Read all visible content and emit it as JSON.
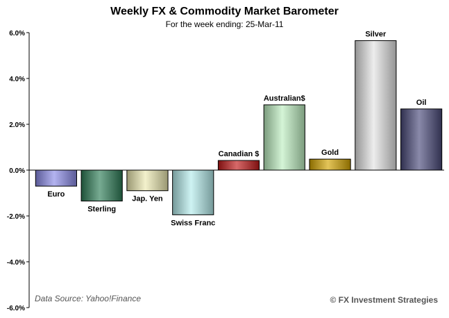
{
  "chart_data": {
    "type": "bar",
    "title": "Weekly FX & Commodity  Market Barometer",
    "subtitle": "For the week ending:  25-Mar-11",
    "categories": [
      "Euro",
      "Sterling",
      "Jap. Yen",
      "Swiss Franc",
      "Canadian $",
      "Australian$",
      "Gold",
      "Silver",
      "Oil"
    ],
    "values": [
      -0.7,
      -1.35,
      -0.9,
      -1.95,
      0.42,
      2.85,
      0.48,
      5.65,
      2.67
    ],
    "colors": [
      "#8a8ae8",
      "#2e7d57",
      "#ece9b0",
      "#b4ecec",
      "#c01818",
      "#bdeec0",
      "#d4a400",
      "#e4e4e4",
      "#4a4a7a"
    ],
    "ylim": [
      -6,
      6
    ],
    "yticks": [
      -6,
      -4,
      -2,
      0,
      2,
      4,
      6
    ],
    "ytick_labels": [
      "-6.0%",
      "-4.0%",
      "-2.0%",
      "0.0%",
      "2.0%",
      "4.0%",
      "6.0%"
    ],
    "xlabel": "",
    "ylabel": "",
    "grid": false,
    "legend": "none"
  },
  "footer": {
    "source": "Data Source: Yahoo!Finance",
    "copyright": "© FX Investment Strategies"
  }
}
